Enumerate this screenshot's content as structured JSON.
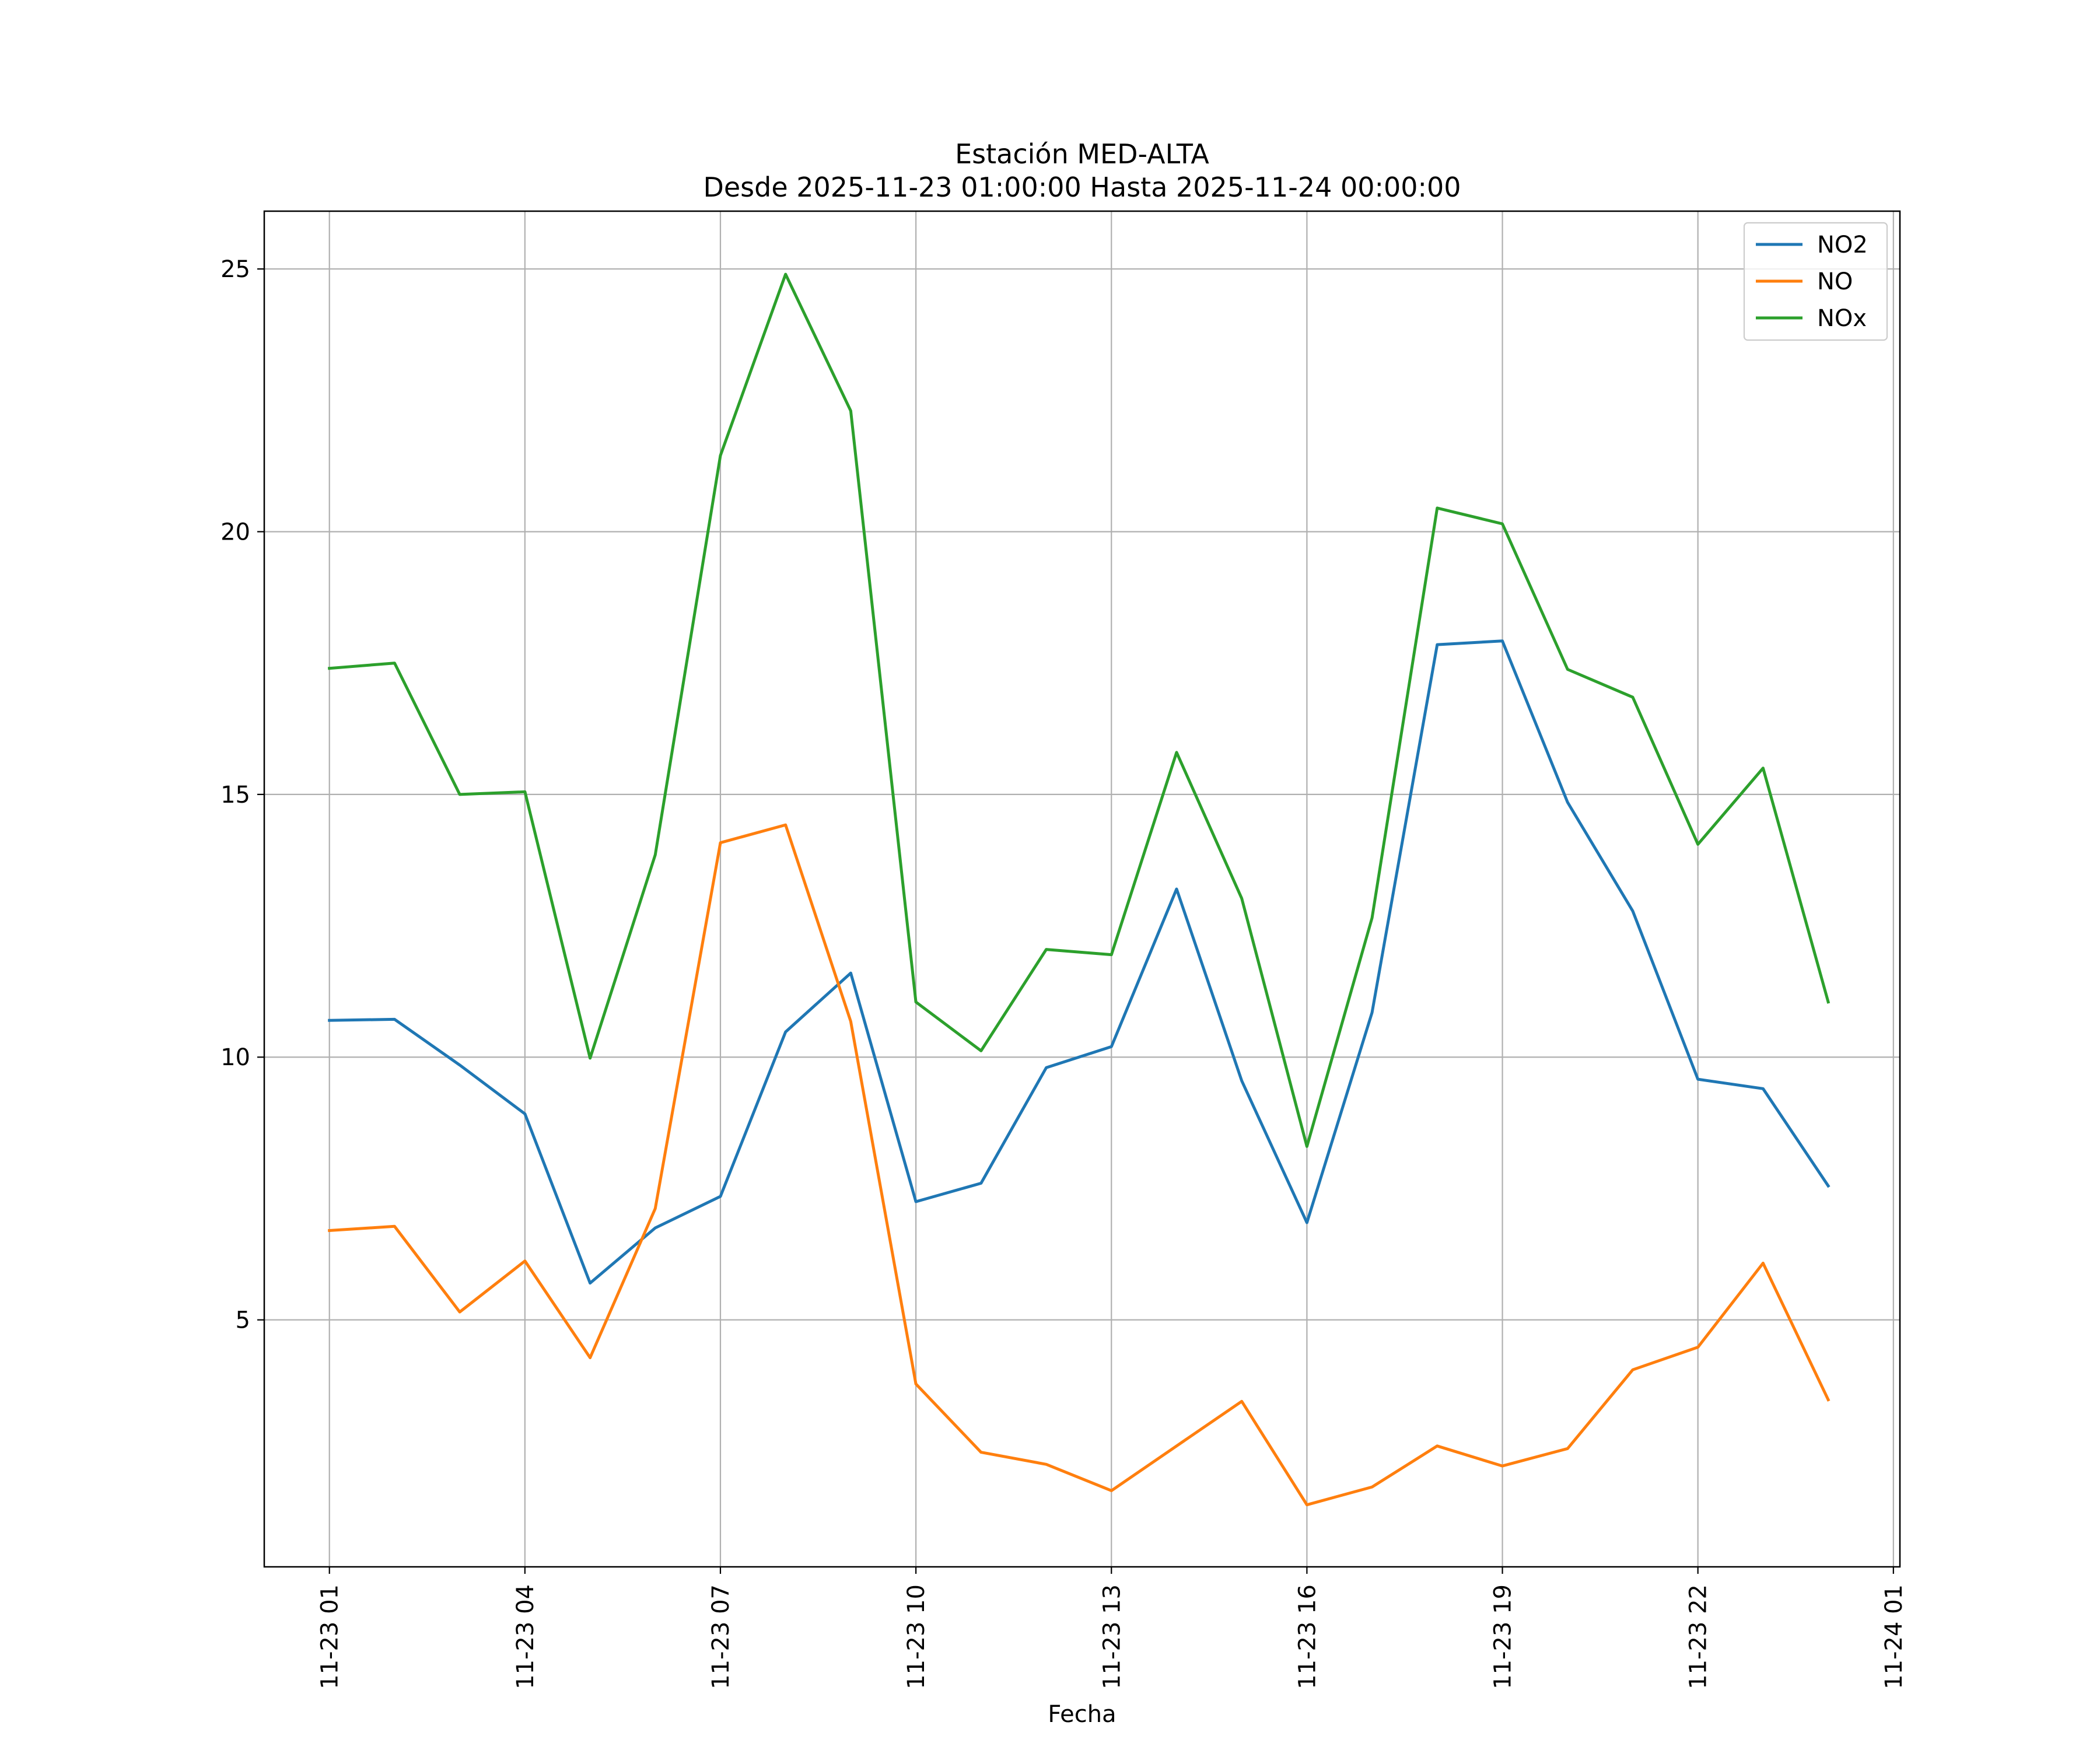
{
  "chart_data": {
    "type": "line",
    "title": "Estación MED-ALTA",
    "subtitle": "Desde 2025-11-23 01:00:00 Hasta 2025-11-24 00:00:00",
    "xlabel": "Fecha",
    "ylabel": "",
    "x": [
      "2025-11-23 01:00",
      "2025-11-23 02:00",
      "2025-11-23 03:00",
      "2025-11-23 04:00",
      "2025-11-23 05:00",
      "2025-11-23 06:00",
      "2025-11-23 07:00",
      "2025-11-23 08:00",
      "2025-11-23 09:00",
      "2025-11-23 10:00",
      "2025-11-23 11:00",
      "2025-11-23 12:00",
      "2025-11-23 13:00",
      "2025-11-23 14:00",
      "2025-11-23 15:00",
      "2025-11-23 16:00",
      "2025-11-23 17:00",
      "2025-11-23 18:00",
      "2025-11-23 19:00",
      "2025-11-23 20:00",
      "2025-11-23 21:00",
      "2025-11-23 22:00",
      "2025-11-23 23:00",
      "2025-11-24 00:00"
    ],
    "x_ticks": [
      "11-23 01",
      "11-23 04",
      "11-23 07",
      "11-23 10",
      "11-23 13",
      "11-23 16",
      "11-23 19",
      "11-23 22",
      "11-24 01"
    ],
    "x_tick_positions": [
      "2025-11-23 01:00",
      "2025-11-23 04:00",
      "2025-11-23 07:00",
      "2025-11-23 10:00",
      "2025-11-23 13:00",
      "2025-11-23 16:00",
      "2025-11-23 19:00",
      "2025-11-23 22:00",
      "2025-11-24 01:00"
    ],
    "xlim": [
      "2025-11-23 00:00",
      "2025-11-24 01:06"
    ],
    "y_ticks": [
      5,
      10,
      15,
      20,
      25
    ],
    "ylim": [
      0.3,
      26.1
    ],
    "grid": true,
    "legend_position": "top-right",
    "series": [
      {
        "name": "NO2",
        "color": "#1f77b4",
        "values": [
          10.7,
          10.72,
          9.85,
          8.92,
          5.7,
          6.75,
          7.35,
          10.48,
          11.6,
          7.25,
          7.6,
          9.8,
          10.2,
          13.2,
          9.55,
          6.85,
          10.85,
          17.85,
          17.92,
          14.85,
          12.78,
          9.58,
          9.4,
          7.55
        ]
      },
      {
        "name": "NO",
        "color": "#ff7f0e",
        "values": [
          6.7,
          6.78,
          5.15,
          6.12,
          4.28,
          7.12,
          14.08,
          14.42,
          10.68,
          3.78,
          2.48,
          2.25,
          1.75,
          2.6,
          3.45,
          1.48,
          1.82,
          2.6,
          2.22,
          2.55,
          4.05,
          4.48,
          6.08,
          3.48
        ]
      },
      {
        "name": "NOx",
        "color": "#2ca02c",
        "values": [
          17.4,
          17.5,
          15.0,
          15.05,
          9.98,
          13.85,
          21.45,
          24.9,
          22.3,
          11.05,
          10.12,
          12.05,
          11.95,
          15.8,
          13.02,
          8.3,
          12.65,
          20.45,
          20.15,
          17.38,
          16.85,
          14.05,
          15.5,
          11.05
        ]
      }
    ]
  }
}
